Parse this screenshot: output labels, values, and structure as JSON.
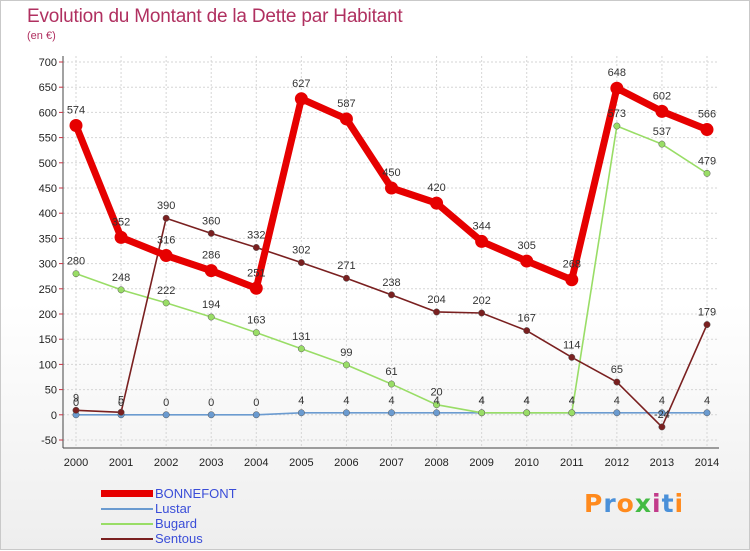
{
  "chart_data": {
    "type": "line",
    "title": "Evolution du Montant de la Dette par Habitant",
    "ylabel": "(en €)",
    "ylim": [
      -50,
      700
    ],
    "yticks": [
      -50,
      0,
      50,
      100,
      150,
      200,
      250,
      300,
      350,
      400,
      450,
      500,
      550,
      600,
      650,
      700
    ],
    "ytick_labels": [
      "-50",
      "0",
      "50",
      "100",
      "150",
      "200",
      "250",
      "300",
      "350",
      "400",
      "450",
      "500",
      "550",
      "600",
      "650",
      "700"
    ],
    "categories": [
      "2000",
      "2001",
      "2002",
      "2003",
      "2004",
      "2005",
      "2006",
      "2007",
      "2008",
      "2009",
      "2010",
      "2011",
      "2012",
      "2013",
      "2014"
    ],
    "series": [
      {
        "name": "BONNEFONT",
        "color": "#e60000",
        "values": [
          574,
          352,
          316,
          286,
          251,
          627,
          587,
          450,
          420,
          344,
          305,
          268,
          648,
          602,
          566
        ],
        "labels": [
          "574",
          "352",
          "316",
          "286",
          "251",
          "627",
          "587",
          "450",
          "420",
          "344",
          "305",
          "268",
          "648",
          "602",
          "566"
        ]
      },
      {
        "name": "Lustar",
        "color": "#6b9bd0",
        "values": [
          0,
          0,
          0,
          0,
          0,
          4,
          4,
          4,
          4,
          4,
          4,
          4,
          4,
          4,
          4
        ],
        "labels": [
          "0",
          "0",
          "0",
          "0",
          "0",
          "4",
          "4",
          "4",
          "4",
          "4",
          "4",
          "4",
          "4",
          "4",
          "4"
        ]
      },
      {
        "name": "Bugard",
        "color": "#99dd66",
        "values": [
          280,
          248,
          222,
          194,
          163,
          131,
          99,
          61,
          20,
          4,
          4,
          4,
          573,
          537,
          479
        ],
        "labels": [
          "280",
          "248",
          "222",
          "194",
          "163",
          "131",
          "99",
          "61",
          "20",
          "4",
          "4",
          "4",
          "573",
          "537",
          "479"
        ]
      },
      {
        "name": "Sentous",
        "color": "#7a2020",
        "values": [
          9,
          5,
          390,
          360,
          332,
          302,
          271,
          238,
          204,
          202,
          167,
          114,
          65,
          -24,
          179
        ],
        "labels": [
          "9",
          "5",
          "390",
          "360",
          "332",
          "302",
          "271",
          "238",
          "204",
          "202",
          "167",
          "114",
          "65",
          "-24",
          "179"
        ]
      }
    ],
    "legend_position": "bottom-left"
  },
  "logo": {
    "text": "Proxiti"
  }
}
